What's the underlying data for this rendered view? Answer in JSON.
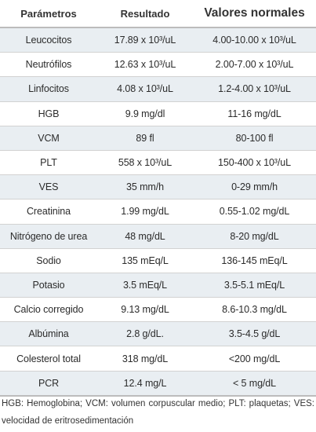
{
  "table": {
    "headers": [
      "Parámetros",
      "Resultado",
      "Valores normales"
    ],
    "rows": [
      [
        "Leucocitos",
        "17.89 x 10³/uL",
        "4.00-10.00 x 10³/uL"
      ],
      [
        "Neutrófilos",
        "12.63 x 10³/uL",
        "2.00-7.00 x 10³/uL"
      ],
      [
        "Linfocitos",
        "4.08 x 10³/uL",
        "1.2-4.00 x 10³/uL"
      ],
      [
        "HGB",
        "9.9 mg/dl",
        "11-16 mg/dL"
      ],
      [
        "VCM",
        "89 fl",
        "80-100 fl"
      ],
      [
        "PLT",
        "558 x 10³/uL",
        "150-400 x 10³/uL"
      ],
      [
        "VES",
        "35 mm/h",
        "0-29 mm/h"
      ],
      [
        "Creatinina",
        "1.99 mg/dL",
        "0.55-1.02 mg/dL"
      ],
      [
        "Nitrógeno de urea",
        "48 mg/dL",
        "8-20 mg/dL"
      ],
      [
        "Sodio",
        "135 mEq/L",
        "136-145 mEq/L"
      ],
      [
        "Potasio",
        "3.5 mEq/L",
        "3.5-5.1 mEq/L"
      ],
      [
        "Calcio corregido",
        "9.13 mg/dL",
        "8.6-10.3 mg/dL"
      ],
      [
        "Albúmina",
        "2.8 g/dL.",
        "3.5-4.5 g/dL"
      ],
      [
        "Colesterol total",
        "318 mg/dL",
        "<200 mg/dL"
      ],
      [
        "PCR",
        "12.4 mg/L",
        "< 5 mg/dL"
      ]
    ]
  },
  "footnote": "HGB: Hemoglobina; VCM: volumen corpuscular medio; PLT: plaquetas; VES: velocidad de eritrosedimentación"
}
